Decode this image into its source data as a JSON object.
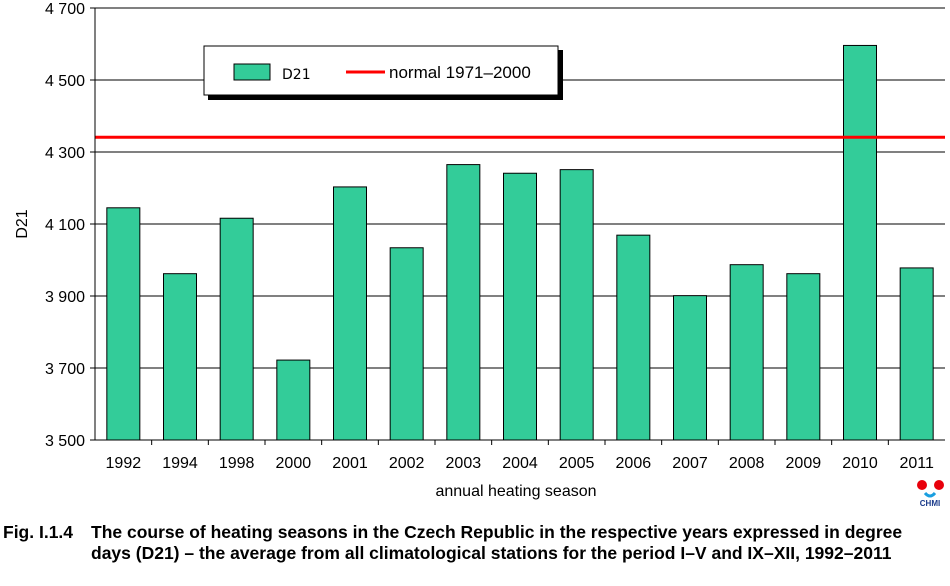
{
  "chart_data": {
    "type": "bar",
    "categories": [
      "1992",
      "1994",
      "1998",
      "2000",
      "2001",
      "2002",
      "2003",
      "2004",
      "2005",
      "2006",
      "2007",
      "2008",
      "2009",
      "2010",
      "2011"
    ],
    "series": [
      {
        "name": "D21",
        "values": [
          4145,
          3962,
          4116,
          3722,
          4203,
          4034,
          4265,
          4241,
          4251,
          4069,
          3901,
          3987,
          3962,
          4596,
          3978
        ],
        "color": "#33cc99"
      }
    ],
    "reference_line": {
      "name": "normal 1971–2000",
      "value": 4341,
      "color": "#ff0000"
    },
    "ylim": [
      3500,
      4700
    ],
    "yticks": [
      3500,
      3700,
      3900,
      4100,
      4300,
      4500,
      4700
    ],
    "ytick_labels": [
      "3 500",
      "3 700",
      "3 900",
      "4 100",
      "4 300",
      "4 500",
      "4 700"
    ],
    "ylabel": "D21",
    "xlabel": "annual heating season",
    "grid": "horizontal",
    "legend_position": "top-left"
  },
  "caption": {
    "label": "Fig. I.1.4",
    "text": "The course of heating seasons in the Czech Republic in the respective years expressed in degree days (D21) – the average from all climatological stations for the period I–V and IX–XII, 1992–2011"
  },
  "logo": {
    "text": "CHMI",
    "colors": [
      "#e8000b",
      "#1a9fe0"
    ]
  }
}
